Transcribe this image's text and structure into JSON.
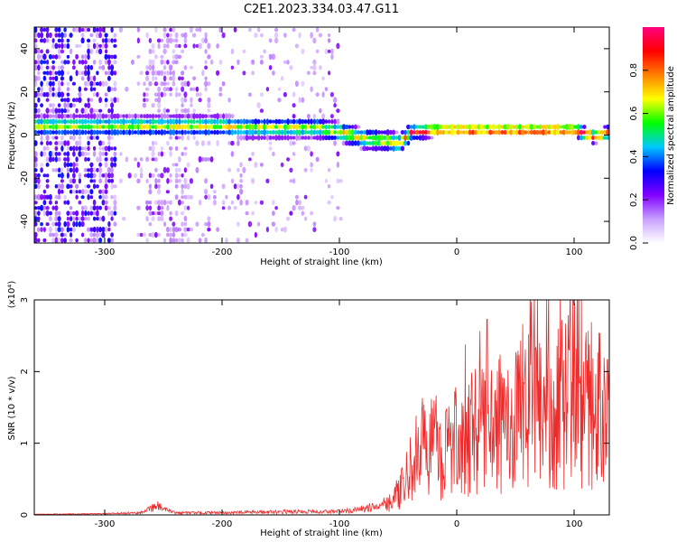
{
  "title": "C2E1.2023.334.03.47.G11",
  "chart_data": [
    {
      "type": "heatmap",
      "xlabel": "Height of straight line (km)",
      "ylabel": "Frequency (Hz)",
      "xlim": [
        -360,
        130
      ],
      "ylim": [
        -50,
        50
      ],
      "xticks": [
        -300,
        -200,
        -100,
        0,
        100
      ],
      "yticks": [
        -40,
        -20,
        0,
        20,
        40
      ],
      "colorbar": {
        "label": "Normalized spectral amplitude",
        "range": [
          0.0,
          1.0
        ],
        "ticks": [
          0.0,
          0.2,
          0.4,
          0.6,
          0.8
        ],
        "colormap": [
          "#ffffff",
          "#c8a0ff",
          "#8000ff",
          "#0000ff",
          "#00c8ff",
          "#00ff00",
          "#ffff00",
          "#ff8000",
          "#ff0000",
          "#ff0080"
        ]
      },
      "ridge": {
        "x": [
          -360,
          -300,
          -280,
          -250,
          -220,
          -200,
          -180,
          -150,
          -120,
          -100,
          -80,
          -60,
          -50,
          -40,
          -20,
          0,
          20,
          50,
          80,
          100,
          115,
          130
        ],
        "frequency": [
          3,
          3,
          3,
          3,
          3,
          3,
          2,
          2,
          2,
          0,
          -3,
          -4,
          -5,
          0,
          1,
          1,
          1,
          1,
          1,
          1,
          -2,
          0
        ]
      }
    },
    {
      "type": "line",
      "xlabel": "Height of straight line (km)",
      "ylabel": "SNR (10 * v/v)",
      "ylabel_multiplier": "(x10⁴)",
      "xlim": [
        -360,
        130
      ],
      "ylim": [
        0,
        3
      ],
      "xticks": [
        -300,
        -200,
        -100,
        0,
        100
      ],
      "yticks": [
        0,
        1,
        2,
        3
      ],
      "color": "#ee2a2a",
      "envelope": {
        "x": [
          -360,
          -300,
          -270,
          -255,
          -250,
          -240,
          -200,
          -150,
          -110,
          -90,
          -70,
          -55,
          -45,
          -35,
          -25,
          -15,
          0,
          20,
          40,
          60,
          80,
          100,
          115,
          130
        ],
        "y": [
          0.01,
          0.02,
          0.04,
          0.18,
          0.1,
          0.04,
          0.04,
          0.06,
          0.06,
          0.08,
          0.15,
          0.3,
          0.6,
          1.2,
          1.5,
          1.3,
          1.5,
          1.8,
          1.9,
          2.1,
          2.2,
          2.4,
          2.2,
          2.2
        ]
      }
    }
  ]
}
